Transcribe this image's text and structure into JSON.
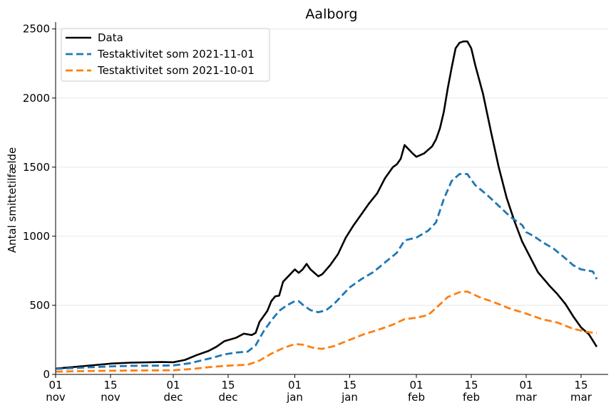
{
  "chart_data": {
    "type": "line",
    "title": "Aalborg",
    "xlabel": "",
    "ylabel": "Antal smittetilfælde",
    "ylim": [
      0,
      2550
    ],
    "xlim": [
      "2021-11-01",
      "2022-03-19"
    ],
    "grid": "horizontal",
    "legend_position": "top-left",
    "y_ticks": [
      0,
      500,
      1000,
      1500,
      2000,
      2500
    ],
    "x_ticks": [
      {
        "date": "2021-11-01",
        "day": "01",
        "month": "nov"
      },
      {
        "date": "2021-11-15",
        "day": "15",
        "month": "nov"
      },
      {
        "date": "2021-12-01",
        "day": "01",
        "month": "dec"
      },
      {
        "date": "2021-12-15",
        "day": "15",
        "month": "dec"
      },
      {
        "date": "2022-01-01",
        "day": "01",
        "month": "jan"
      },
      {
        "date": "2022-01-15",
        "day": "15",
        "month": "jan"
      },
      {
        "date": "2022-02-01",
        "day": "01",
        "month": "feb"
      },
      {
        "date": "2022-02-15",
        "day": "15",
        "month": "feb"
      },
      {
        "date": "2022-03-01",
        "day": "01",
        "month": "mar"
      },
      {
        "date": "2022-03-15",
        "day": "15",
        "month": "mar"
      }
    ],
    "series": [
      {
        "name": "Data",
        "color": "#000000",
        "style": "solid",
        "points": [
          [
            "2021-11-01",
            42
          ],
          [
            "2021-11-05",
            52
          ],
          [
            "2021-11-10",
            65
          ],
          [
            "2021-11-15",
            78
          ],
          [
            "2021-11-20",
            85
          ],
          [
            "2021-11-25",
            88
          ],
          [
            "2021-11-28",
            90
          ],
          [
            "2021-12-01",
            88
          ],
          [
            "2021-12-04",
            105
          ],
          [
            "2021-12-07",
            140
          ],
          [
            "2021-12-10",
            170
          ],
          [
            "2021-12-12",
            200
          ],
          [
            "2021-12-14",
            240
          ],
          [
            "2021-12-17",
            265
          ],
          [
            "2021-12-19",
            295
          ],
          [
            "2021-12-21",
            285
          ],
          [
            "2021-12-22",
            300
          ],
          [
            "2021-12-23",
            380
          ],
          [
            "2021-12-25",
            460
          ],
          [
            "2021-12-26",
            530
          ],
          [
            "2021-12-27",
            565
          ],
          [
            "2021-12-28",
            570
          ],
          [
            "2021-12-29",
            670
          ],
          [
            "2022-01-01",
            760
          ],
          [
            "2022-01-02",
            735
          ],
          [
            "2022-01-03",
            760
          ],
          [
            "2022-01-04",
            800
          ],
          [
            "2022-01-05",
            760
          ],
          [
            "2022-01-07",
            710
          ],
          [
            "2022-01-08",
            725
          ],
          [
            "2022-01-10",
            790
          ],
          [
            "2022-01-12",
            870
          ],
          [
            "2022-01-14",
            990
          ],
          [
            "2022-01-16",
            1080
          ],
          [
            "2022-01-18",
            1160
          ],
          [
            "2022-01-20",
            1240
          ],
          [
            "2022-01-22",
            1310
          ],
          [
            "2022-01-24",
            1420
          ],
          [
            "2022-01-26",
            1500
          ],
          [
            "2022-01-27",
            1520
          ],
          [
            "2022-01-28",
            1560
          ],
          [
            "2022-01-29",
            1660
          ],
          [
            "2022-01-31",
            1600
          ],
          [
            "2022-02-01",
            1575
          ],
          [
            "2022-02-03",
            1600
          ],
          [
            "2022-02-05",
            1650
          ],
          [
            "2022-02-06",
            1700
          ],
          [
            "2022-02-07",
            1780
          ],
          [
            "2022-02-08",
            1900
          ],
          [
            "2022-02-09",
            2070
          ],
          [
            "2022-02-10",
            2220
          ],
          [
            "2022-02-11",
            2360
          ],
          [
            "2022-02-12",
            2400
          ],
          [
            "2022-02-13",
            2410
          ],
          [
            "2022-02-14",
            2410
          ],
          [
            "2022-02-15",
            2360
          ],
          [
            "2022-02-16",
            2240
          ],
          [
            "2022-02-18",
            2030
          ],
          [
            "2022-02-20",
            1760
          ],
          [
            "2022-02-22",
            1500
          ],
          [
            "2022-02-24",
            1280
          ],
          [
            "2022-02-26",
            1110
          ],
          [
            "2022-02-28",
            960
          ],
          [
            "2022-03-02",
            850
          ],
          [
            "2022-03-04",
            740
          ],
          [
            "2022-03-07",
            640
          ],
          [
            "2022-03-09",
            580
          ],
          [
            "2022-03-11",
            510
          ],
          [
            "2022-03-13",
            420
          ],
          [
            "2022-03-15",
            340
          ],
          [
            "2022-03-17",
            290
          ],
          [
            "2022-03-18",
            245
          ],
          [
            "2022-03-19",
            200
          ]
        ]
      },
      {
        "name": "Testaktivitet som 2021-11-01",
        "color": "#1f77b4",
        "style": "dashed",
        "points": [
          [
            "2021-11-01",
            40
          ],
          [
            "2021-11-05",
            45
          ],
          [
            "2021-11-10",
            52
          ],
          [
            "2021-11-15",
            58
          ],
          [
            "2021-11-20",
            62
          ],
          [
            "2021-11-25",
            63
          ],
          [
            "2021-12-01",
            65
          ],
          [
            "2021-12-05",
            80
          ],
          [
            "2021-12-08",
            100
          ],
          [
            "2021-12-11",
            120
          ],
          [
            "2021-12-14",
            145
          ],
          [
            "2021-12-17",
            158
          ],
          [
            "2021-12-20",
            165
          ],
          [
            "2021-12-22",
            210
          ],
          [
            "2021-12-24",
            310
          ],
          [
            "2021-12-26",
            390
          ],
          [
            "2021-12-28",
            460
          ],
          [
            "2021-12-30",
            500
          ],
          [
            "2022-01-01",
            530
          ],
          [
            "2022-01-02",
            530
          ],
          [
            "2022-01-03",
            505
          ],
          [
            "2022-01-05",
            465
          ],
          [
            "2022-01-07",
            450
          ],
          [
            "2022-01-09",
            465
          ],
          [
            "2022-01-11",
            510
          ],
          [
            "2022-01-13",
            570
          ],
          [
            "2022-01-15",
            630
          ],
          [
            "2022-01-18",
            690
          ],
          [
            "2022-01-21",
            740
          ],
          [
            "2022-01-24",
            810
          ],
          [
            "2022-01-27",
            880
          ],
          [
            "2022-01-29",
            970
          ],
          [
            "2022-02-01",
            990
          ],
          [
            "2022-02-04",
            1040
          ],
          [
            "2022-02-06",
            1100
          ],
          [
            "2022-02-08",
            1270
          ],
          [
            "2022-02-10",
            1400
          ],
          [
            "2022-02-12",
            1450
          ],
          [
            "2022-02-14",
            1450
          ],
          [
            "2022-02-16",
            1370
          ],
          [
            "2022-02-19",
            1300
          ],
          [
            "2022-02-22",
            1220
          ],
          [
            "2022-02-25",
            1140
          ],
          [
            "2022-02-28",
            1080
          ],
          [
            "2022-03-01",
            1030
          ],
          [
            "2022-03-03",
            1000
          ],
          [
            "2022-03-05",
            960
          ],
          [
            "2022-03-08",
            910
          ],
          [
            "2022-03-11",
            840
          ],
          [
            "2022-03-13",
            790
          ],
          [
            "2022-03-15",
            760
          ],
          [
            "2022-03-18",
            745
          ],
          [
            "2022-03-19",
            690
          ]
        ]
      },
      {
        "name": "Testaktivitet som 2021-10-01",
        "color": "#ff7f0e",
        "style": "dashed",
        "points": [
          [
            "2021-11-01",
            20
          ],
          [
            "2021-11-10",
            25
          ],
          [
            "2021-11-20",
            28
          ],
          [
            "2021-12-01",
            30
          ],
          [
            "2021-12-06",
            40
          ],
          [
            "2021-12-11",
            55
          ],
          [
            "2021-12-16",
            65
          ],
          [
            "2021-12-20",
            70
          ],
          [
            "2021-12-23",
            100
          ],
          [
            "2021-12-26",
            150
          ],
          [
            "2021-12-29",
            190
          ],
          [
            "2022-01-01",
            220
          ],
          [
            "2022-01-03",
            215
          ],
          [
            "2022-01-06",
            190
          ],
          [
            "2022-01-08",
            185
          ],
          [
            "2022-01-11",
            205
          ],
          [
            "2022-01-15",
            250
          ],
          [
            "2022-01-19",
            295
          ],
          [
            "2022-01-22",
            320
          ],
          [
            "2022-01-26",
            360
          ],
          [
            "2022-01-29",
            400
          ],
          [
            "2022-02-01",
            410
          ],
          [
            "2022-02-04",
            430
          ],
          [
            "2022-02-06",
            480
          ],
          [
            "2022-02-09",
            560
          ],
          [
            "2022-02-12",
            595
          ],
          [
            "2022-02-14",
            600
          ],
          [
            "2022-02-17",
            560
          ],
          [
            "2022-02-21",
            520
          ],
          [
            "2022-02-25",
            475
          ],
          [
            "2022-03-01",
            440
          ],
          [
            "2022-03-05",
            400
          ],
          [
            "2022-03-09",
            375
          ],
          [
            "2022-03-13",
            330
          ],
          [
            "2022-03-17",
            305
          ],
          [
            "2022-03-19",
            300
          ]
        ]
      }
    ]
  }
}
